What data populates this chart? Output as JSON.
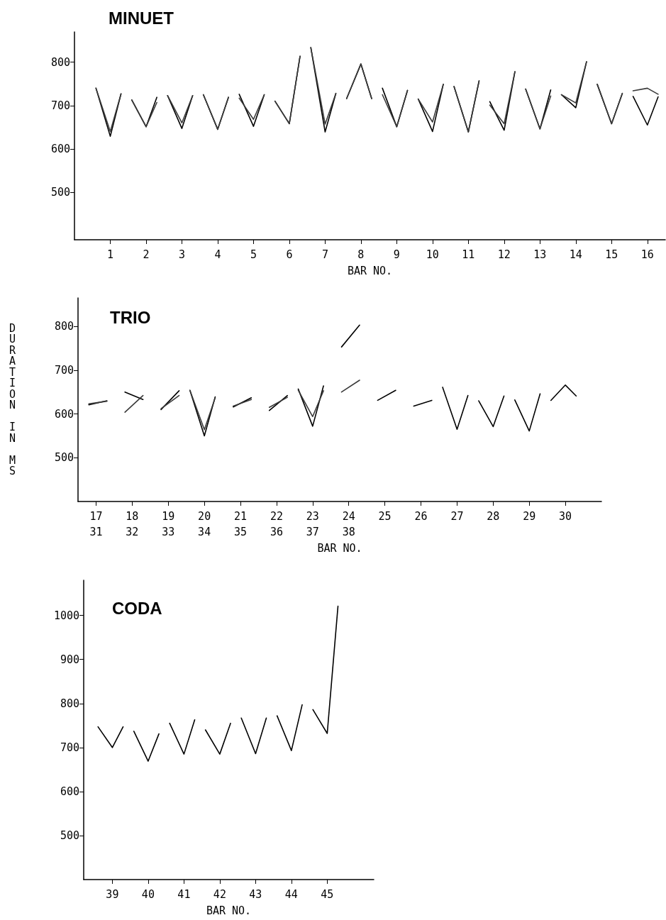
{
  "chart_data": [
    {
      "type": "line",
      "title": "MINUET",
      "xlabel": "BAR NO.",
      "xlim": [
        0,
        16.5
      ],
      "xticks": [
        1,
        2,
        3,
        4,
        5,
        6,
        7,
        8,
        9,
        10,
        11,
        12,
        13,
        14,
        15,
        16
      ],
      "ylim": [
        390,
        870
      ],
      "yticks": [
        500,
        600,
        700,
        800
      ],
      "line_style": "solid",
      "series": [
        {
          "color": "#000000",
          "x": [
            0.6,
            1,
            1.3,
            null,
            1.6,
            2,
            2.3,
            null,
            2.6,
            3,
            3.3,
            null,
            3.6,
            4,
            4.3,
            null,
            4.6,
            5,
            5.3,
            null,
            5.6,
            6,
            6.3,
            null,
            6.6,
            7,
            7.3,
            null,
            7.6,
            8,
            8.3,
            null,
            8.6,
            9,
            9.3,
            null,
            9.6,
            10,
            10.3,
            null,
            10.6,
            11,
            11.3,
            null,
            11.6,
            12,
            12.3,
            null,
            12.6,
            13,
            13.3,
            null,
            13.6,
            14,
            14.3,
            null,
            14.6,
            15,
            15.3,
            null,
            15.6,
            16,
            16.3
          ],
          "values": [
            740,
            629,
            727,
            null,
            713,
            651,
            719,
            null,
            723,
            647,
            723,
            null,
            725,
            645,
            719,
            null,
            726,
            652,
            725,
            null,
            710,
            658,
            814,
            null,
            834,
            639,
            728,
            null,
            716,
            796,
            716,
            null,
            740,
            651,
            735,
            null,
            715,
            640,
            749,
            null,
            744,
            639,
            757,
            null,
            709,
            643,
            778,
            null,
            738,
            646,
            736,
            null,
            725,
            695,
            801,
            null,
            749,
            658,
            728,
            null,
            721,
            655,
            720
          ]
        },
        {
          "color": "#3a3a3a",
          "x": [
            0.6,
            1,
            1.3,
            null,
            1.6,
            2,
            2.3,
            null,
            2.6,
            3,
            3.3,
            null,
            3.6,
            4,
            4.3,
            null,
            4.6,
            5,
            5.3,
            null,
            5.6,
            6,
            6.3,
            null,
            6.6,
            7,
            7.3,
            null,
            7.6,
            8,
            8.3,
            null,
            8.6,
            9,
            9.3,
            null,
            9.6,
            10,
            10.3,
            null,
            10.6,
            11,
            11.3,
            null,
            11.6,
            12,
            12.3,
            null,
            12.6,
            13,
            13.3,
            null,
            13.6,
            14,
            14.3,
            null,
            14.6,
            15,
            15.3,
            null,
            15.6,
            16,
            16.3
          ],
          "values": [
            740,
            640,
            727,
            null,
            713,
            651,
            707,
            null,
            723,
            660,
            723,
            null,
            725,
            645,
            719,
            null,
            717,
            668,
            725,
            null,
            710,
            658,
            814,
            null,
            834,
            657,
            728,
            null,
            716,
            796,
            716,
            null,
            725,
            651,
            735,
            null,
            715,
            662,
            749,
            null,
            744,
            639,
            757,
            null,
            701,
            658,
            778,
            null,
            738,
            646,
            722,
            null,
            725,
            706,
            801,
            null,
            749,
            658,
            728,
            null,
            734,
            740,
            726
          ]
        }
      ]
    },
    {
      "type": "line",
      "title": "TRIO",
      "xlabel": "BAR NO.",
      "ylabel": "DURATION IN MS",
      "xlim": [
        16.5,
        31
      ],
      "xticks": [
        {
          "value": 17,
          "label": "17\n31"
        },
        {
          "value": 18,
          "label": "18\n32"
        },
        {
          "value": 19,
          "label": "19\n33"
        },
        {
          "value": 20,
          "label": "20\n34"
        },
        {
          "value": 21,
          "label": "21\n35"
        },
        {
          "value": 22,
          "label": "22\n36"
        },
        {
          "value": 23,
          "label": "23\n37"
        },
        {
          "value": 24,
          "label": "24\n38"
        },
        25,
        26,
        27,
        28,
        29,
        30
      ],
      "ylim": [
        400,
        865
      ],
      "yticks": [
        500,
        600,
        700,
        800
      ],
      "line_style": "solid",
      "series": [
        {
          "color": "#000000",
          "x": [
            16.8,
            17.3,
            null,
            17.8,
            18.3,
            null,
            18.8,
            19.3,
            null,
            19.6,
            20,
            20.3,
            null,
            20.8,
            21.3,
            null,
            21.8,
            22.3,
            null,
            22.6,
            23,
            23.3,
            null,
            23.8,
            24.3,
            null,
            24.8,
            25.3,
            null,
            25.8,
            26.3,
            null,
            26.6,
            27,
            27.3,
            null,
            27.6,
            28,
            28.3,
            null,
            28.6,
            29,
            29.3,
            null,
            29.6,
            30,
            30.3
          ],
          "values": [
            621,
            630,
            null,
            650,
            633,
            null,
            610,
            653,
            null,
            654,
            550,
            639,
            null,
            616,
            637,
            null,
            608,
            642,
            null,
            657,
            572,
            664,
            null,
            753,
            803,
            null,
            631,
            654,
            null,
            618,
            631,
            null,
            661,
            565,
            642,
            null,
            630,
            571,
            641,
            null,
            632,
            561,
            646,
            null,
            631,
            666,
            641
          ]
        },
        {
          "color": "#3a3a3a",
          "x": [
            16.8,
            17.3,
            null,
            17.8,
            18.3,
            null,
            18.8,
            19.3,
            null,
            19.6,
            20,
            20.3,
            null,
            20.8,
            21.3,
            null,
            21.8,
            22.3,
            null,
            22.6,
            23,
            23.3,
            null,
            23.8,
            24.3
          ],
          "values": [
            623,
            629,
            null,
            604,
            642,
            null,
            612,
            642,
            null,
            654,
            564,
            637,
            null,
            618,
            633,
            null,
            615,
            638,
            null,
            654,
            594,
            653,
            null,
            650,
            677
          ]
        }
      ]
    },
    {
      "type": "line",
      "title": "CODA",
      "xlabel": "BAR NO.",
      "xlim": [
        38.2,
        46.3
      ],
      "xticks": [
        39,
        40,
        41,
        42,
        43,
        44,
        45
      ],
      "ylim": [
        400,
        1080
      ],
      "yticks": [
        500,
        600,
        700,
        800,
        900,
        1000
      ],
      "line_style": "solid",
      "series": [
        {
          "color": "#000000",
          "x": [
            38.6,
            39,
            39.3,
            null,
            39.6,
            40,
            40.3,
            null,
            40.6,
            41,
            41.3,
            null,
            41.6,
            42,
            42.3,
            null,
            42.6,
            43,
            43.3,
            null,
            43.6,
            44,
            44.3,
            null,
            44.6,
            45,
            45.3
          ],
          "values": [
            747,
            700,
            747,
            null,
            737,
            669,
            731,
            null,
            755,
            685,
            763,
            null,
            740,
            685,
            755,
            null,
            767,
            686,
            767,
            null,
            772,
            693,
            797,
            null,
            786,
            732,
            1021
          ]
        }
      ]
    }
  ]
}
